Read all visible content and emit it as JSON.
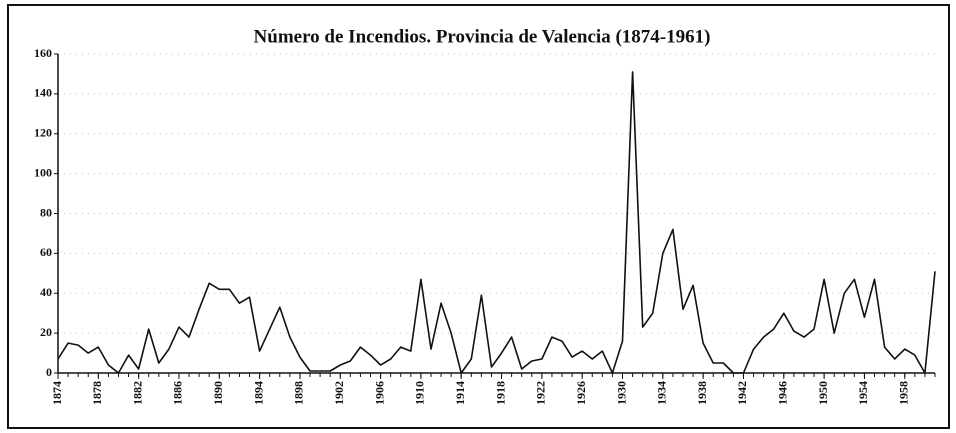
{
  "chart_data": {
    "type": "line",
    "title": "Número de Incendios. Provincia de Valencia (1874-1961)",
    "x": [
      1874,
      1875,
      1876,
      1877,
      1878,
      1879,
      1880,
      1881,
      1882,
      1883,
      1884,
      1885,
      1886,
      1887,
      1888,
      1889,
      1890,
      1891,
      1892,
      1893,
      1894,
      1895,
      1896,
      1897,
      1898,
      1899,
      1900,
      1901,
      1902,
      1903,
      1904,
      1905,
      1906,
      1907,
      1908,
      1909,
      1910,
      1911,
      1912,
      1913,
      1914,
      1915,
      1916,
      1917,
      1918,
      1919,
      1920,
      1921,
      1922,
      1923,
      1924,
      1925,
      1926,
      1927,
      1928,
      1929,
      1930,
      1931,
      1932,
      1933,
      1934,
      1935,
      1936,
      1937,
      1938,
      1939,
      1940,
      1941,
      1942,
      1943,
      1944,
      1945,
      1946,
      1947,
      1948,
      1949,
      1950,
      1951,
      1952,
      1953,
      1954,
      1955,
      1956,
      1957,
      1958,
      1959,
      1960,
      1961
    ],
    "values": [
      7,
      15,
      14,
      10,
      13,
      4,
      0,
      9,
      2,
      22,
      5,
      12,
      23,
      18,
      32,
      45,
      42,
      42,
      35,
      38,
      11,
      22,
      33,
      18,
      8,
      1,
      1,
      1,
      4,
      6,
      13,
      9,
      4,
      7,
      13,
      11,
      47,
      12,
      35,
      20,
      0,
      7,
      39,
      3,
      10,
      18,
      2,
      6,
      7,
      18,
      16,
      8,
      11,
      7,
      11,
      0,
      16,
      151,
      23,
      30,
      60,
      72,
      32,
      44,
      15,
      5,
      5,
      0,
      0,
      12,
      18,
      22,
      30,
      21,
      18,
      22,
      47,
      20,
      40,
      47,
      28,
      47,
      13,
      7,
      12,
      9,
      0,
      51
    ],
    "color": "#111111",
    "xlim": [
      1874,
      1961
    ],
    "xticks": [
      1874,
      1878,
      1882,
      1886,
      1890,
      1894,
      1898,
      1902,
      1906,
      1910,
      1914,
      1918,
      1922,
      1926,
      1930,
      1934,
      1938,
      1942,
      1946,
      1950,
      1954,
      1958
    ],
    "ylim": [
      0,
      160
    ],
    "yticks": [
      0,
      20,
      40,
      60,
      80,
      100,
      120,
      140,
      160
    ],
    "grid": true
  }
}
